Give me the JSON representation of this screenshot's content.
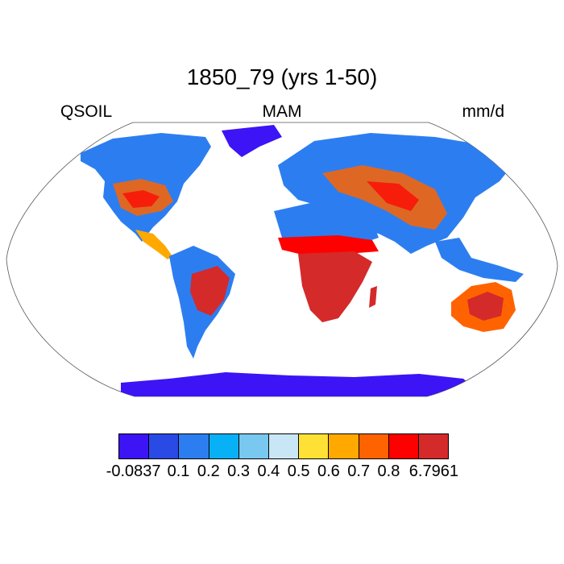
{
  "title": "1850_79 (yrs 1-50)",
  "labels": {
    "left": "QSOIL",
    "center": "MAM",
    "right": "mm/d"
  },
  "colorbar": {
    "colors": [
      "#3d14f5",
      "#2a4ae6",
      "#2c7ef0",
      "#08b0f5",
      "#78c8f0",
      "#c8e6f5",
      "#ffe135",
      "#ffa800",
      "#ff6300",
      "#ff0000",
      "#d42a2a"
    ],
    "tick_labels": [
      "-0.0837",
      "0.1",
      "0.2",
      "0.3",
      "0.4",
      "0.5",
      "0.6",
      "0.7",
      "0.8",
      "6.7961"
    ]
  }
}
